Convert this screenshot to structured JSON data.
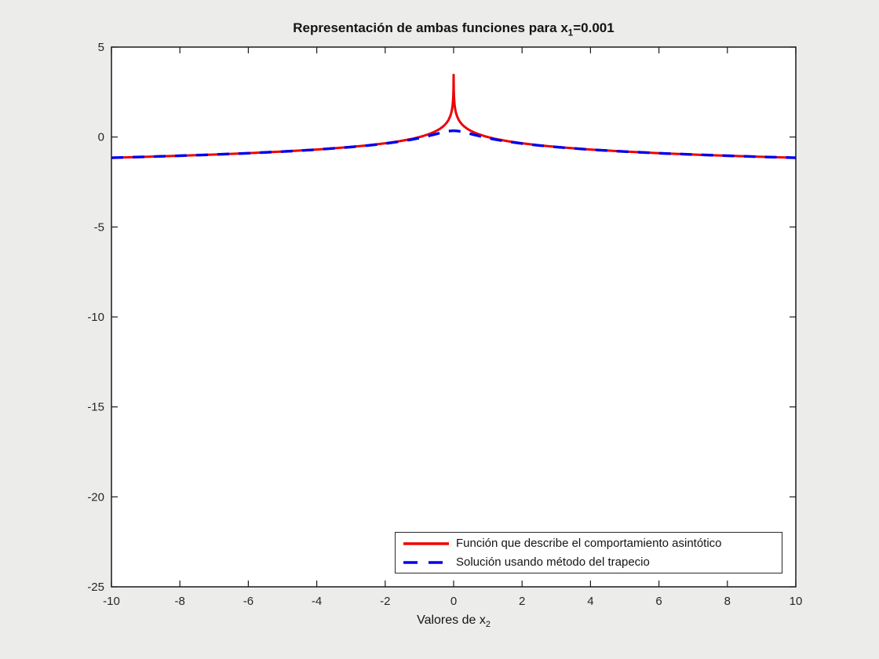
{
  "figure": {
    "background": "#ececea",
    "plot_background": "#ffffff",
    "axis_color": "#1a1a1a",
    "text_color": "#262626"
  },
  "title": {
    "prefix": "Representación de ambas funciones para x",
    "sub": "1",
    "suffix": "=0.001"
  },
  "xlabel": {
    "prefix": "Valores de x",
    "sub": "2"
  },
  "legend": {
    "items": [
      {
        "label": "Función que describe el comportamiento asintótico",
        "color": "#ee0000",
        "style": "solid"
      },
      {
        "label": "Solución usando método del trapecio",
        "color": "#0000ee",
        "style": "dashed"
      }
    ]
  },
  "chart_data": {
    "type": "line",
    "title": "Representación de ambas funciones para x_1=0.001",
    "xlabel": "Valores de x_2",
    "ylabel": "",
    "xlim": [
      -10,
      10
    ],
    "ylim": [
      -25,
      5
    ],
    "x_ticks": [
      -10,
      -8,
      -6,
      -4,
      -2,
      0,
      2,
      4,
      6,
      8,
      10
    ],
    "y_ticks": [
      5,
      0,
      -5,
      -10,
      -15,
      -20,
      -25
    ],
    "grid": false,
    "legend_position": "southeast-inside",
    "x": [
      -10,
      -9,
      -8,
      -7,
      -6,
      -5,
      -4.5,
      -4,
      -3.5,
      -3,
      -2.5,
      -2,
      -1.8,
      -1.6,
      -1.4,
      -1.2,
      -1,
      -0.9,
      -0.8,
      -0.7,
      -0.6,
      -0.5,
      -0.45,
      -0.4,
      -0.35,
      -0.3,
      -0.25,
      -0.2,
      -0.15,
      -0.1,
      -0.07,
      -0.05,
      -0.03,
      -0.02,
      -0.01,
      -0.005,
      0,
      0.005,
      0.01,
      0.02,
      0.03,
      0.05,
      0.07,
      0.1,
      0.15,
      0.2,
      0.25,
      0.3,
      0.35,
      0.4,
      0.45,
      0.5,
      0.6,
      0.7,
      0.8,
      0.9,
      1,
      1.2,
      1.4,
      1.6,
      1.8,
      2,
      2.5,
      3,
      3.5,
      4,
      4.5,
      5,
      6,
      7,
      8,
      9,
      10
    ],
    "series": [
      {
        "name": "Función que describe el comportamiento asintótico",
        "color": "#ee0000",
        "line_style": "solid",
        "values": [
          -1.151,
          -1.099,
          -1.04,
          -0.973,
          -0.896,
          -0.805,
          -0.752,
          -0.693,
          -0.626,
          -0.549,
          -0.458,
          -0.347,
          -0.294,
          -0.235,
          -0.168,
          -0.091,
          0.0,
          0.053,
          0.112,
          0.178,
          0.255,
          0.347,
          0.399,
          0.458,
          0.525,
          0.602,
          0.693,
          0.805,
          0.949,
          1.151,
          1.33,
          1.498,
          1.753,
          1.955,
          2.3,
          2.639,
          3.454,
          2.639,
          2.3,
          1.955,
          1.753,
          1.498,
          1.33,
          1.151,
          0.949,
          0.805,
          0.693,
          0.602,
          0.525,
          0.458,
          0.399,
          0.347,
          0.255,
          0.178,
          0.112,
          0.053,
          0.0,
          -0.091,
          -0.168,
          -0.235,
          -0.294,
          -0.347,
          -0.458,
          -0.549,
          -0.626,
          -0.693,
          -0.752,
          -0.805,
          -0.896,
          -0.973,
          -1.04,
          -1.099,
          -1.151
        ]
      },
      {
        "name": "Solución usando método del trapecio",
        "color": "#0000ee",
        "line_style": "dashed",
        "values": [
          -1.152,
          -1.099,
          -1.041,
          -0.974,
          -0.898,
          -0.807,
          -0.755,
          -0.697,
          -0.631,
          -0.556,
          -0.468,
          -0.362,
          -0.312,
          -0.258,
          -0.198,
          -0.131,
          -0.056,
          -0.015,
          0.029,
          0.075,
          0.124,
          0.173,
          0.198,
          0.223,
          0.247,
          0.27,
          0.291,
          0.309,
          0.325,
          0.337,
          0.342,
          0.344,
          0.346,
          0.346,
          0.347,
          0.347,
          0.347,
          0.347,
          0.347,
          0.346,
          0.346,
          0.344,
          0.342,
          0.337,
          0.325,
          0.309,
          0.291,
          0.27,
          0.247,
          0.223,
          0.198,
          0.173,
          0.124,
          0.075,
          0.029,
          -0.015,
          -0.056,
          -0.131,
          -0.198,
          -0.258,
          -0.312,
          -0.362,
          -0.468,
          -0.556,
          -0.631,
          -0.697,
          -0.755,
          -0.807,
          -0.898,
          -0.974,
          -1.041,
          -1.099,
          -1.152
        ]
      }
    ]
  }
}
